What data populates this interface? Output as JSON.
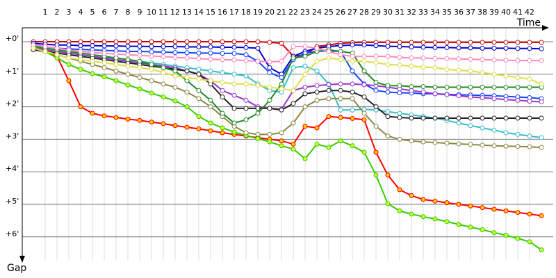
{
  "chart_data": {
    "type": "line",
    "x_label": "Time",
    "y_label": "Gap",
    "x": [
      0,
      1,
      2,
      3,
      4,
      5,
      6,
      7,
      8,
      9,
      10,
      11,
      12,
      13,
      14,
      15,
      16,
      17,
      18,
      19,
      20,
      21,
      22,
      23,
      24,
      25,
      26,
      27,
      28,
      29,
      30,
      31,
      32,
      33,
      34,
      35,
      36,
      37,
      38,
      39,
      40,
      41,
      42,
      43
    ],
    "xlim": [
      0,
      44
    ],
    "xticks": [
      1,
      2,
      3,
      4,
      5,
      6,
      7,
      8,
      9,
      10,
      11,
      12,
      13,
      14,
      15,
      16,
      17,
      18,
      19,
      20,
      21,
      22,
      23,
      24,
      25,
      26,
      27,
      28,
      29,
      30,
      31,
      32,
      33,
      34,
      35,
      36,
      37,
      38,
      39,
      40,
      41,
      42
    ],
    "ylim": [
      0,
      7
    ],
    "yticks": [
      {
        "value": 0,
        "label": "+0'"
      },
      {
        "value": 1,
        "label": "+1'"
      },
      {
        "value": 2,
        "label": "+2'"
      },
      {
        "value": 3,
        "label": "+3'"
      },
      {
        "value": 4,
        "label": "+4'"
      },
      {
        "value": 5,
        "label": "+5'"
      },
      {
        "value": 6,
        "label": "+6'"
      }
    ],
    "grid": true,
    "series": [
      {
        "color": "#ff0000",
        "marker_color": "#ffcc00",
        "values": [
          0.1,
          0.25,
          0.45,
          1.2,
          2.0,
          2.2,
          2.28,
          2.33,
          2.38,
          2.42,
          2.47,
          2.52,
          2.58,
          2.63,
          2.68,
          2.74,
          2.8,
          2.85,
          2.9,
          2.95,
          3.0,
          3.05,
          3.15,
          2.6,
          2.65,
          2.3,
          2.33,
          2.36,
          2.4,
          3.4,
          4.1,
          4.55,
          4.73,
          4.85,
          4.9,
          4.95,
          5.0,
          5.05,
          5.1,
          5.15,
          5.2,
          5.25,
          5.3,
          5.35
        ]
      },
      {
        "color": "#33cc00",
        "marker_color": "#ccff33",
        "values": [
          0.1,
          0.3,
          0.5,
          0.7,
          0.85,
          0.98,
          1.08,
          1.2,
          1.33,
          1.45,
          1.58,
          1.7,
          1.82,
          2.0,
          2.3,
          2.5,
          2.65,
          2.78,
          2.88,
          2.98,
          3.08,
          3.2,
          3.3,
          3.6,
          3.15,
          3.25,
          3.05,
          3.2,
          3.4,
          4.1,
          4.98,
          5.2,
          5.3,
          5.38,
          5.45,
          5.53,
          5.62,
          5.7,
          5.78,
          5.87,
          5.95,
          6.05,
          6.15,
          6.4
        ]
      },
      {
        "color": "#cc0000",
        "marker_color": "#ffffff",
        "values": [
          0,
          0,
          0,
          0,
          0,
          0,
          0,
          0,
          0,
          0,
          0,
          0,
          0,
          0,
          0,
          0,
          0,
          0,
          0,
          0,
          0.02,
          0.05,
          0.45,
          0.4,
          0.15,
          0.1,
          0.05,
          0.03,
          0.02,
          0.02,
          0.02,
          0.02,
          0.02,
          0.02,
          0.02,
          0.02,
          0.02,
          0.02,
          0.02,
          0.02,
          0.02,
          0.02,
          0.02,
          0.02
        ]
      },
      {
        "color": "#0000cc",
        "marker_color": "#ffffff",
        "values": [
          0.05,
          0.08,
          0.1,
          0.1,
          0.12,
          0.12,
          0.13,
          0.13,
          0.14,
          0.14,
          0.15,
          0.15,
          0.15,
          0.16,
          0.16,
          0.16,
          0.17,
          0.17,
          0.18,
          0.2,
          0.8,
          1.0,
          0.45,
          0.3,
          0.2,
          0.15,
          0.12,
          0.1,
          0.1,
          0.12,
          0.14,
          0.15,
          0.16,
          0.17,
          0.18,
          0.18,
          0.19,
          0.19,
          0.2,
          0.2,
          0.2,
          0.21,
          0.21,
          0.22
        ]
      },
      {
        "color": "#1144ff",
        "marker_color": "#ffffff",
        "values": [
          0.1,
          0.15,
          0.2,
          0.22,
          0.24,
          0.25,
          0.27,
          0.28,
          0.3,
          0.3,
          0.31,
          0.32,
          0.33,
          0.34,
          0.35,
          0.35,
          0.36,
          0.36,
          0.4,
          0.6,
          0.95,
          1.1,
          0.55,
          0.35,
          0.3,
          0.28,
          0.3,
          0.9,
          1.3,
          1.5,
          1.55,
          1.57,
          1.58,
          1.6,
          1.6,
          1.62,
          1.63,
          1.64,
          1.65,
          1.66,
          1.68,
          1.7,
          1.72,
          1.75
        ]
      },
      {
        "color": "#33bbcc",
        "marker_color": "#ffffff",
        "values": [
          0.15,
          0.2,
          0.25,
          0.3,
          0.35,
          0.4,
          0.45,
          0.5,
          0.55,
          0.6,
          0.65,
          0.7,
          0.75,
          0.8,
          0.85,
          0.9,
          0.95,
          1.0,
          1.05,
          1.3,
          1.5,
          1.55,
          0.8,
          0.75,
          0.9,
          1.3,
          2.1,
          2.1,
          2.08,
          2.1,
          2.15,
          2.2,
          2.25,
          2.3,
          2.35,
          2.42,
          2.5,
          2.58,
          2.65,
          2.72,
          2.8,
          2.85,
          2.9,
          2.95
        ]
      },
      {
        "color": "#888844",
        "marker_color": "#ffffff",
        "values": [
          0.2,
          0.3,
          0.4,
          0.5,
          0.6,
          0.7,
          0.8,
          0.9,
          1.0,
          1.1,
          1.2,
          1.3,
          1.4,
          1.55,
          1.75,
          2.0,
          2.3,
          2.6,
          2.8,
          2.85,
          2.85,
          2.8,
          2.5,
          2.0,
          1.8,
          1.75,
          1.75,
          1.75,
          2.2,
          2.6,
          2.9,
          3.0,
          3.05,
          3.08,
          3.1,
          3.12,
          3.14,
          3.16,
          3.18,
          3.2,
          3.21,
          3.22,
          3.23,
          3.25
        ]
      },
      {
        "color": "#9933cc",
        "marker_color": "#ffffff",
        "values": [
          0.2,
          0.25,
          0.3,
          0.35,
          0.4,
          0.45,
          0.5,
          0.55,
          0.6,
          0.65,
          0.7,
          0.75,
          0.8,
          0.9,
          1.0,
          1.2,
          1.5,
          1.65,
          1.8,
          2.0,
          2.05,
          2.08,
          1.5,
          1.4,
          1.35,
          1.32,
          1.3,
          1.3,
          1.32,
          1.35,
          1.4,
          1.45,
          1.5,
          1.55,
          1.6,
          1.63,
          1.66,
          1.7,
          1.72,
          1.75,
          1.78,
          1.8,
          1.83,
          1.85
        ]
      },
      {
        "color": "#222222",
        "marker_color": "#ffffff",
        "values": [
          0.25,
          0.3,
          0.35,
          0.4,
          0.45,
          0.5,
          0.55,
          0.6,
          0.65,
          0.7,
          0.75,
          0.8,
          0.85,
          0.9,
          1.0,
          1.3,
          1.7,
          2.05,
          2.05,
          2.05,
          2.05,
          2.1,
          1.9,
          1.6,
          1.55,
          1.5,
          1.5,
          1.55,
          1.7,
          2.0,
          2.3,
          2.33,
          2.35,
          2.35,
          2.35,
          2.35,
          2.35,
          2.35,
          2.35,
          2.35,
          2.35,
          2.35,
          2.35,
          2.35
        ]
      },
      {
        "color": "#228822",
        "marker_color": "#ffffff",
        "values": [
          0.15,
          0.2,
          0.25,
          0.3,
          0.35,
          0.4,
          0.45,
          0.5,
          0.55,
          0.6,
          0.7,
          0.8,
          0.9,
          1.2,
          1.5,
          1.8,
          2.2,
          2.5,
          2.4,
          2.2,
          1.8,
          1.3,
          0.5,
          0.45,
          0.3,
          0.25,
          0.3,
          0.35,
          0.9,
          1.25,
          1.35,
          1.35,
          1.38,
          1.38,
          1.4,
          1.4,
          1.4,
          1.4,
          1.4,
          1.4,
          1.4,
          1.4,
          1.4,
          1.4
        ]
      },
      {
        "color": "#ff88bb",
        "marker_color": "#ffffff",
        "values": [
          0.1,
          0.15,
          0.2,
          0.25,
          0.3,
          0.33,
          0.36,
          0.38,
          0.4,
          0.42,
          0.44,
          0.46,
          0.48,
          0.5,
          0.52,
          0.54,
          0.55,
          0.56,
          0.58,
          0.6,
          0.62,
          0.6,
          0.15,
          0.15,
          0.2,
          0.3,
          0.4,
          0.45,
          0.45,
          0.45,
          0.45,
          0.48,
          0.5,
          0.5,
          0.52,
          0.52,
          0.53,
          0.54,
          0.55,
          0.56,
          0.57,
          0.58,
          0.58,
          0.58
        ]
      },
      {
        "color": "#dddd44",
        "marker_color": "#ffffff",
        "values": [
          0.2,
          0.3,
          0.4,
          0.5,
          0.55,
          0.6,
          0.65,
          0.7,
          0.75,
          0.8,
          0.85,
          0.95,
          1.05,
          1.1,
          1.15,
          1.2,
          1.25,
          1.3,
          1.3,
          1.35,
          1.4,
          1.45,
          1.5,
          1.0,
          0.6,
          0.5,
          0.55,
          0.6,
          0.6,
          0.65,
          0.7,
          0.72,
          0.75,
          0.78,
          0.8,
          0.85,
          0.88,
          0.9,
          0.95,
          1.0,
          1.05,
          1.1,
          1.15,
          1.3
        ]
      }
    ]
  }
}
